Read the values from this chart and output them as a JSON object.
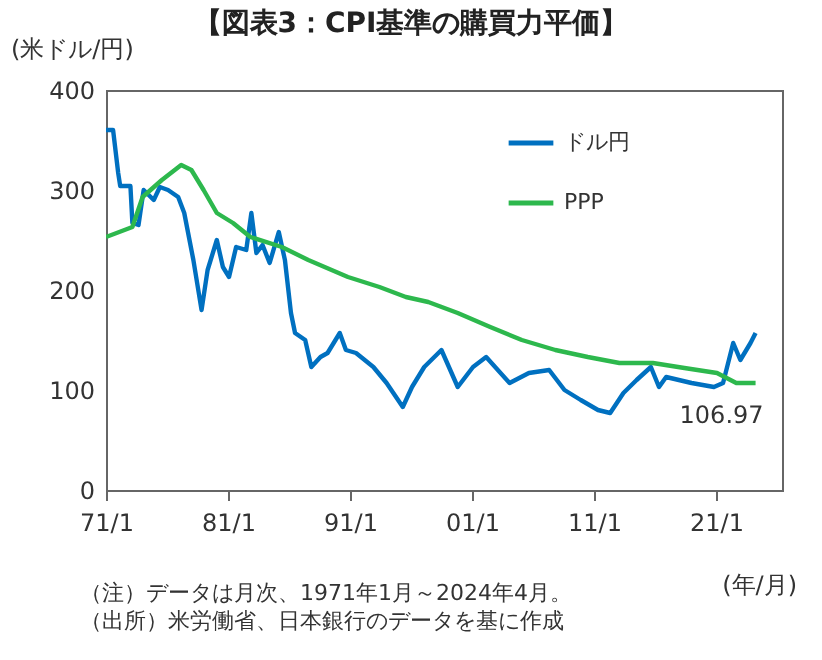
{
  "chart_data": {
    "type": "line",
    "title": "【図表3：CPI基準の購買力平価】",
    "ylabel": "(米ドル/円)",
    "xlabel": "(年/月)",
    "xlim": [
      "1971-01",
      "2026-06"
    ],
    "ylim": [
      0,
      400
    ],
    "xticks": [
      {
        "value": "1971-01",
        "label": "71/1"
      },
      {
        "value": "1981-01",
        "label": "81/1"
      },
      {
        "value": "1991-01",
        "label": "91/1"
      },
      {
        "value": "2001-01",
        "label": "01/1"
      },
      {
        "value": "2011-01",
        "label": "11/1"
      },
      {
        "value": "2021-01",
        "label": "21/1"
      }
    ],
    "yticks": [
      0,
      100,
      200,
      300,
      400
    ],
    "grid": false,
    "legend": "top right",
    "series": [
      {
        "name": "ドル円",
        "color": "#0070c0",
        "x": [
          "1971-01",
          "1971-08",
          "1972-01",
          "1972-03",
          "1973-01",
          "1973-03",
          "1973-09",
          "1974-02",
          "1974-12",
          "1975-06",
          "1976-02",
          "1976-12",
          "1977-06",
          "1978-03",
          "1978-11",
          "1979-05",
          "1980-02",
          "1980-08",
          "1981-02",
          "1981-09",
          "1982-07",
          "1982-12",
          "1983-05",
          "1983-11",
          "1984-06",
          "1985-03",
          "1985-09",
          "1986-03",
          "1986-07",
          "1987-05",
          "1987-11",
          "1988-08",
          "1989-03",
          "1990-03",
          "1990-09",
          "1991-07",
          "1992-12",
          "1994-01",
          "1995-05",
          "1996-02",
          "1997-02",
          "1998-07",
          "1999-11",
          "2001-02",
          "2002-03",
          "2004-02",
          "2005-09",
          "2007-05",
          "2008-08",
          "2009-12",
          "2011-05",
          "2012-05",
          "2013-06",
          "2014-07",
          "2015-09",
          "2016-05",
          "2016-12",
          "2019-01",
          "2020-11",
          "2021-08",
          "2022-06",
          "2023-01",
          "2023-11",
          "2024-04"
        ],
        "values": [
          360,
          360,
          317,
          304,
          304,
          267,
          265,
          300,
          290,
          303,
          300,
          293,
          277,
          230,
          180,
          220,
          250,
          223,
          213,
          243,
          240,
          277,
          237,
          245,
          227,
          258,
          230,
          177,
          157,
          150,
          123,
          133,
          137,
          157,
          140,
          137,
          123,
          107,
          83,
          103,
          123,
          140,
          103,
          123,
          133,
          107,
          117,
          120,
          100,
          90,
          80,
          77,
          97,
          110,
          123,
          103,
          113,
          107,
          103,
          107,
          147,
          130,
          147,
          157
        ]
      },
      {
        "name": "PPP",
        "color": "#2db84d",
        "x": [
          "1971-01",
          "1973-03",
          "1974-01",
          "1975-08",
          "1977-03",
          "1978-01",
          "1979-01",
          "1980-02",
          "1981-06",
          "1982-11",
          "1985-06",
          "1987-08",
          "1990-11",
          "1993-06",
          "1995-08",
          "1997-06",
          "1999-11",
          "2002-07",
          "2005-02",
          "2007-11",
          "2010-07",
          "2013-02",
          "2015-11",
          "2018-06",
          "2021-02",
          "2022-09",
          "2024-04"
        ],
        "values": [
          253,
          263,
          293,
          310,
          325,
          320,
          300,
          277,
          267,
          253,
          243,
          230,
          213,
          203,
          193,
          188,
          177,
          163,
          150,
          140,
          133,
          127,
          127,
          122,
          117,
          107,
          106.97
        ]
      }
    ],
    "annotations": [
      {
        "text": "106.97",
        "x": "2024-04",
        "y": 106.97
      },
      "（注）データは月次、1971年1月～2024年4月。",
      "（出所）米労働省、日本銀行のデータを基に作成"
    ]
  }
}
